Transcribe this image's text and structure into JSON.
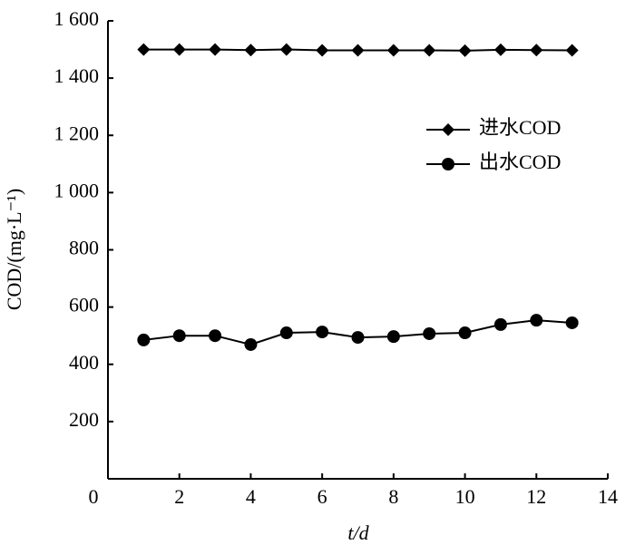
{
  "chart_data": {
    "type": "line",
    "x_label": "t/d",
    "y_label": "COD/(mg·L⁻¹)",
    "x": [
      1,
      2,
      3,
      4,
      5,
      6,
      7,
      8,
      9,
      10,
      11,
      12,
      13
    ],
    "series": [
      {
        "name": "进水COD",
        "color": "#000000",
        "marker": "diamond",
        "values": [
          1500,
          1500,
          1500,
          1498,
          1500,
          1497,
          1497,
          1497,
          1497,
          1496,
          1499,
          1498,
          1497
        ]
      },
      {
        "name": "出水COD",
        "color": "#000000",
        "marker": "circle",
        "values": [
          485,
          500,
          500,
          469,
          510,
          513,
          494,
          497,
          507,
          510,
          539,
          554,
          545
        ]
      }
    ],
    "xlim": [
      0,
      14
    ],
    "xticks": [
      0,
      2,
      4,
      6,
      8,
      10,
      12,
      14
    ],
    "ylim": [
      0,
      1600
    ],
    "yticks": [
      200,
      400,
      600,
      800,
      {
        "value": 1000,
        "label": "1 000"
      },
      {
        "value": 1200,
        "label": "1 200"
      },
      {
        "value": 1400,
        "label": "1 400"
      },
      {
        "value": 1600,
        "label": "1 600"
      }
    ],
    "grid": false,
    "legend": "upper right"
  }
}
